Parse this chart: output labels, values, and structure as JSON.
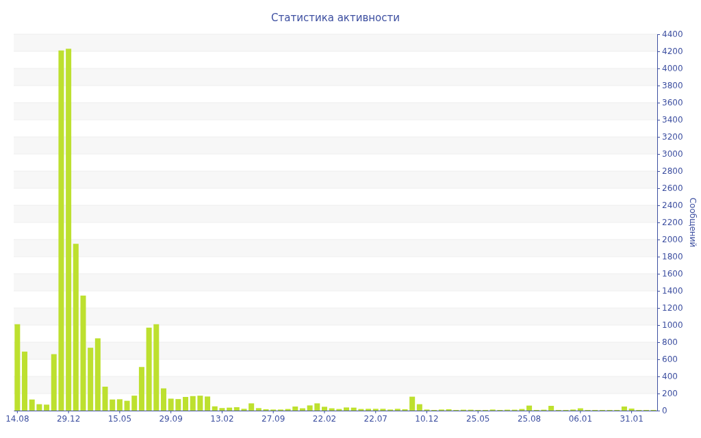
{
  "chart_data": {
    "type": "bar",
    "title": "Статистика активности",
    "ylabel": "Сообщений",
    "categories": [
      "14.08",
      null,
      null,
      null,
      null,
      null,
      null,
      "29.12",
      null,
      null,
      null,
      null,
      null,
      null,
      "15.05",
      null,
      null,
      null,
      null,
      null,
      null,
      "29.09",
      null,
      null,
      null,
      null,
      null,
      null,
      "13.02",
      null,
      null,
      null,
      null,
      null,
      null,
      "27.09",
      null,
      null,
      null,
      null,
      null,
      null,
      "22.02",
      null,
      null,
      null,
      null,
      null,
      null,
      "22.07",
      null,
      null,
      null,
      null,
      null,
      null,
      "10.12",
      null,
      null,
      null,
      null,
      null,
      null,
      "25.05",
      null,
      null,
      null,
      null,
      null,
      null,
      "25.08",
      null,
      null,
      null,
      null,
      null,
      null,
      "06.01",
      null,
      null,
      null,
      null,
      null,
      null,
      "31.01",
      null,
      null,
      null
    ],
    "values": [
      1010,
      690,
      130,
      75,
      70,
      660,
      4210,
      4230,
      1950,
      1345,
      735,
      845,
      280,
      130,
      133,
      115,
      175,
      510,
      970,
      1010,
      260,
      140,
      135,
      160,
      170,
      175,
      165,
      50,
      30,
      35,
      40,
      21,
      85,
      29,
      16,
      13,
      13,
      19,
      48,
      27,
      61,
      85,
      45,
      27,
      19,
      37,
      35,
      19,
      21,
      21,
      21,
      13,
      21,
      16,
      163,
      75,
      13,
      8,
      13,
      16,
      8,
      11,
      11,
      8,
      8,
      13,
      8,
      11,
      11,
      19,
      59,
      8,
      11,
      56,
      8,
      8,
      13,
      27,
      8,
      8,
      8,
      8,
      8,
      48,
      24,
      8,
      8,
      8
    ],
    "color": "#bde02f",
    "ylim": [
      0,
      4400
    ],
    "yticks": [
      0,
      200,
      400,
      600,
      800,
      1000,
      1200,
      1400,
      1600,
      1800,
      2000,
      2200,
      2400,
      2600,
      2800,
      3000,
      3200,
      3400,
      3600,
      3800,
      4000,
      4200,
      4400
    ],
    "grid": "y"
  }
}
